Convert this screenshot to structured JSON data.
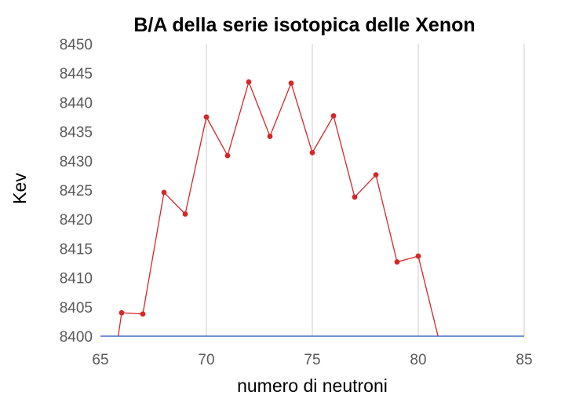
{
  "colors": {
    "series": "#d62728",
    "axis": "#4472c4",
    "grid": "#d9d9d9",
    "tick_text": "#595959"
  },
  "chart_data": {
    "type": "scatter",
    "title": "B/A della serie isotopica delle Xenon",
    "xlabel": "numero di neutroni",
    "ylabel": "Kev",
    "xlim": [
      65,
      85
    ],
    "ylim": [
      8400,
      8450
    ],
    "xticks": [
      65,
      70,
      75,
      80,
      85
    ],
    "yticks": [
      8400,
      8405,
      8410,
      8415,
      8420,
      8425,
      8430,
      8435,
      8440,
      8445,
      8450
    ],
    "grid": "vertical",
    "lines": true,
    "markers": true,
    "series": [
      {
        "points": [
          {
            "x": 65.8,
            "y": 8399.0
          },
          {
            "x": 66,
            "y": 8404.0
          },
          {
            "x": 67,
            "y": 8403.8
          },
          {
            "x": 68,
            "y": 8424.6
          },
          {
            "x": 69,
            "y": 8420.9
          },
          {
            "x": 70,
            "y": 8437.5
          },
          {
            "x": 71,
            "y": 8430.9
          },
          {
            "x": 72,
            "y": 8443.5
          },
          {
            "x": 73,
            "y": 8434.2
          },
          {
            "x": 74,
            "y": 8443.3
          },
          {
            "x": 75,
            "y": 8431.4
          },
          {
            "x": 76,
            "y": 8437.7
          },
          {
            "x": 77,
            "y": 8423.8
          },
          {
            "x": 78,
            "y": 8427.6
          },
          {
            "x": 79,
            "y": 8412.7
          },
          {
            "x": 80,
            "y": 8413.7
          },
          {
            "x": 81,
            "y": 8399.0
          }
        ]
      }
    ]
  }
}
